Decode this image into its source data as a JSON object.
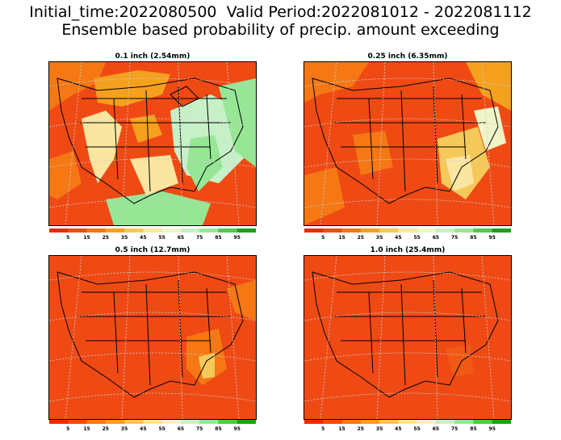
{
  "header": {
    "line1": "Initial_time:2022080500  Valid Period:2022081012 - 2022081112",
    "line2": "Ensemble based probability of precip. amount exceeding"
  },
  "panels": [
    {
      "title": "0.1 inch (2.54mm)"
    },
    {
      "title": "0.25 inch (6.35mm)"
    },
    {
      "title": "0.5 inch (12.7mm)"
    },
    {
      "title": "1.0 inch (25.4mm)"
    }
  ],
  "colorbar": {
    "labels": [
      "5",
      "15",
      "25",
      "35",
      "45",
      "55",
      "65",
      "75",
      "85",
      "95"
    ],
    "colors": [
      "#f0280a",
      "#f04a14",
      "#f57814",
      "#f5a01e",
      "#f5c85a",
      "#fae6a0",
      "#f0f5c8",
      "#c8f0c8",
      "#96e696",
      "#50c850",
      "#1ea01e"
    ]
  }
}
